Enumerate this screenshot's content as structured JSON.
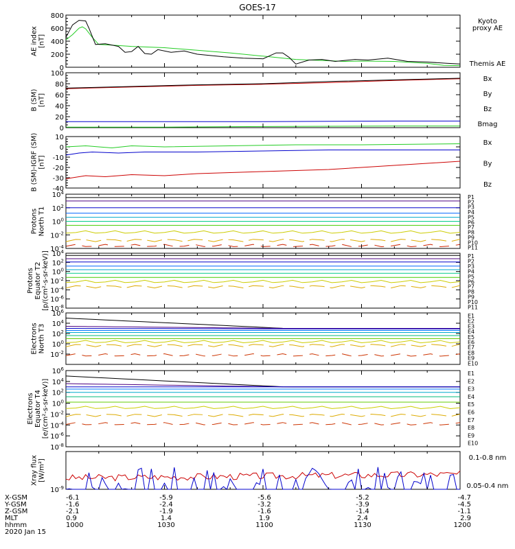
{
  "title": "GOES-17",
  "colors": {
    "black": "#000000",
    "green": "#22cc22",
    "blue": "#0000cc",
    "red": "#cc0000",
    "P": [
      "#000000",
      "#4b0080",
      "#0000cc",
      "#0066ff",
      "#00aacc",
      "#00cc88",
      "#44cc00",
      "#cccc00",
      "#ddaa00",
      "#cc2200",
      "#cc0000"
    ],
    "E": [
      "#000000",
      "#4b0080",
      "#0000cc",
      "#0077ff",
      "#00aacc",
      "#00bb77",
      "#66cc00",
      "#cccc00",
      "#ddaa00",
      "#cc3300",
      "#cc0000"
    ]
  },
  "xaxis": {
    "rows": [
      {
        "label": "X-GSM",
        "values": [
          "-6.1",
          "-5.9",
          "-5.6",
          "-5.2",
          "-4.7"
        ]
      },
      {
        "label": "Y-GSM",
        "values": [
          "-1.6",
          "-2.4",
          "-3.2",
          "-3.9",
          "-4.5"
        ]
      },
      {
        "label": "Z-GSM",
        "values": [
          "-2.1",
          "-1.9",
          "-1.6",
          "-1.4",
          "-1.1"
        ]
      },
      {
        "label": "MLT",
        "values": [
          "0.9",
          "1.4",
          "1.9",
          "2.4",
          "2.9"
        ]
      },
      {
        "label": "hhmm",
        "values": [
          "1000",
          "1030",
          "1100",
          "1130",
          "1200"
        ]
      }
    ],
    "date": "2020 Jan 15"
  },
  "chart_data": [
    {
      "type": "line",
      "ylabel": "AE index\n[nT]",
      "ylim": [
        0,
        800
      ],
      "yticks": [
        "0",
        "200",
        "400",
        "600",
        "800"
      ],
      "ytick_values": [
        0,
        200,
        400,
        600,
        800
      ],
      "series": [
        {
          "name": "Kyoto proxy AE",
          "color": "green",
          "values": [
            [
              0,
              420
            ],
            [
              2,
              500
            ],
            [
              4,
              600
            ],
            [
              5,
              620
            ],
            [
              6,
              590
            ],
            [
              8,
              460
            ],
            [
              10,
              350
            ],
            [
              14,
              340
            ],
            [
              20,
              320
            ],
            [
              30,
              300
            ],
            [
              40,
              260
            ],
            [
              50,
              220
            ],
            [
              60,
              170
            ],
            [
              70,
              120
            ],
            [
              80,
              100
            ],
            [
              85,
              90
            ],
            [
              90,
              95
            ],
            [
              100,
              90
            ],
            [
              110,
              60
            ],
            [
              115,
              30
            ],
            [
              120,
              25
            ]
          ]
        },
        {
          "name": "Themis AE",
          "color": "black",
          "values": [
            [
              0,
              460
            ],
            [
              2,
              650
            ],
            [
              4,
              720
            ],
            [
              6,
              710
            ],
            [
              7,
              600
            ],
            [
              9,
              350
            ],
            [
              12,
              360
            ],
            [
              16,
              320
            ],
            [
              18,
              230
            ],
            [
              20,
              240
            ],
            [
              22,
              320
            ],
            [
              24,
              210
            ],
            [
              26,
              200
            ],
            [
              28,
              270
            ],
            [
              32,
              230
            ],
            [
              36,
              250
            ],
            [
              40,
              200
            ],
            [
              48,
              160
            ],
            [
              54,
              140
            ],
            [
              60,
              130
            ],
            [
              64,
              220
            ],
            [
              66,
              220
            ],
            [
              68,
              150
            ],
            [
              70,
              50
            ],
            [
              74,
              110
            ],
            [
              78,
              120
            ],
            [
              82,
              90
            ],
            [
              88,
              120
            ],
            [
              92,
              110
            ],
            [
              98,
              140
            ],
            [
              104,
              90
            ],
            [
              110,
              80
            ],
            [
              116,
              60
            ],
            [
              120,
              50
            ]
          ]
        }
      ],
      "legend": [
        {
          "text": "Kyoto\nproxy AE",
          "color": "green"
        },
        {
          "text": "Themis AE",
          "color": "black"
        }
      ]
    },
    {
      "type": "line",
      "ylabel": "B (SM)\n[nT]",
      "ylim": [
        0,
        100
      ],
      "yticks": [
        "0",
        "20",
        "40",
        "60",
        "80",
        "100"
      ],
      "ytick_values": [
        0,
        20,
        40,
        60,
        80,
        100
      ],
      "series": [
        {
          "name": "Bx",
          "color": "blue",
          "values": [
            [
              0,
              11
            ],
            [
              20,
              11
            ],
            [
              60,
              11
            ],
            [
              100,
              12
            ],
            [
              120,
              12
            ]
          ]
        },
        {
          "name": "By",
          "color": "green",
          "values": [
            [
              0,
              1
            ],
            [
              30,
              1
            ],
            [
              60,
              2
            ],
            [
              100,
              3
            ],
            [
              120,
              3
            ]
          ]
        },
        {
          "name": "Bz",
          "color": "red",
          "values": [
            [
              0,
              71
            ],
            [
              20,
              74
            ],
            [
              40,
              77
            ],
            [
              60,
              79
            ],
            [
              80,
              82
            ],
            [
              100,
              86
            ],
            [
              120,
              89
            ]
          ]
        },
        {
          "name": "Bmag",
          "color": "black",
          "values": [
            [
              0,
              72
            ],
            [
              20,
              75
            ],
            [
              40,
              78
            ],
            [
              60,
              80
            ],
            [
              80,
              84
            ],
            [
              100,
              87
            ],
            [
              120,
              90
            ]
          ]
        }
      ],
      "legend": [
        {
          "text": "Bx",
          "color": "blue"
        },
        {
          "text": "By",
          "color": "green"
        },
        {
          "text": "Bz",
          "color": "red"
        },
        {
          "text": "Bmag",
          "color": "black"
        }
      ]
    },
    {
      "type": "line",
      "ylabel": "B (SM)-IGRF (SM)\n[nT]",
      "ylim": [
        -40,
        10
      ],
      "yticks": [
        "-40",
        "-30",
        "-20",
        "-10",
        "0",
        "10"
      ],
      "ytick_values": [
        -40,
        -30,
        -20,
        -10,
        0,
        10
      ],
      "series": [
        {
          "name": "Bx",
          "color": "blue",
          "values": [
            [
              0,
              -8
            ],
            [
              4,
              -6
            ],
            [
              8,
              -5
            ],
            [
              16,
              -6
            ],
            [
              24,
              -5
            ],
            [
              40,
              -5
            ],
            [
              60,
              -4
            ],
            [
              80,
              -3
            ],
            [
              100,
              -3
            ],
            [
              120,
              -3
            ]
          ]
        },
        {
          "name": "By",
          "color": "green",
          "values": [
            [
              0,
              0
            ],
            [
              6,
              1
            ],
            [
              10,
              0
            ],
            [
              14,
              -1
            ],
            [
              20,
              1
            ],
            [
              30,
              0
            ],
            [
              50,
              1
            ],
            [
              70,
              2
            ],
            [
              90,
              2
            ],
            [
              120,
              3
            ]
          ]
        },
        {
          "name": "Bz",
          "color": "red",
          "values": [
            [
              0,
              -31
            ],
            [
              6,
              -28
            ],
            [
              12,
              -29
            ],
            [
              20,
              -27
            ],
            [
              30,
              -28
            ],
            [
              40,
              -26
            ],
            [
              50,
              -25
            ],
            [
              60,
              -24
            ],
            [
              70,
              -23
            ],
            [
              80,
              -22
            ],
            [
              90,
              -20
            ],
            [
              100,
              -18
            ],
            [
              110,
              -16
            ],
            [
              120,
              -14
            ]
          ]
        }
      ],
      "legend": [
        {
          "text": "Bx",
          "color": "blue"
        },
        {
          "text": "By",
          "color": "green"
        },
        {
          "text": "Bz",
          "color": "red"
        }
      ]
    },
    {
      "type": "log-line",
      "ylabel": "Protons\nNorth T1",
      "ylim_exp": [
        -4,
        4
      ],
      "yticks": [
        "10^-4",
        "10^-2",
        "10^0",
        "10^2",
        "10^4"
      ],
      "ytick_exps": [
        -4,
        -2,
        0,
        2,
        4
      ],
      "series": [
        {
          "name": "P1",
          "levels": [
            3.5,
            3.5
          ]
        },
        {
          "name": "P2",
          "levels": [
            3.0,
            3.0
          ]
        },
        {
          "name": "P3",
          "levels": [
            2.0,
            2.0
          ]
        },
        {
          "name": "P4",
          "levels": [
            1.2,
            1.2
          ]
        },
        {
          "name": "P5",
          "levels": [
            0.6,
            0.6
          ]
        },
        {
          "name": "P6",
          "levels": [
            0.0,
            0.0
          ]
        },
        {
          "name": "P7",
          "levels": [
            -0.6,
            -0.6
          ]
        },
        {
          "name": "P8",
          "levels": [
            -1.6,
            -1.6
          ]
        },
        {
          "name": "P9",
          "levels": [
            -2.8,
            -2.8
          ]
        },
        {
          "name": "P10",
          "levels": [
            -3.6,
            -3.6
          ]
        },
        {
          "name": "P11",
          "levels": [
            -4.2,
            -4.2
          ]
        }
      ],
      "legend_prefix": "P"
    },
    {
      "type": "log-line",
      "ylabel": "Protons\nEquator T2\n[p/(cm²-s-sr-keV)]",
      "ylim_exp": [
        -8,
        4
      ],
      "yticks": [
        "10^-8",
        "10^-6",
        "10^-4",
        "10^-2",
        "10^0",
        "10^2",
        "10^4"
      ],
      "ytick_exps": [
        -8,
        -6,
        -4,
        -2,
        0,
        2,
        4
      ],
      "series": [
        {
          "name": "P1",
          "levels": [
            3.5,
            3.5
          ]
        },
        {
          "name": "P2",
          "levels": [
            2.8,
            2.8
          ]
        },
        {
          "name": "P3",
          "levels": [
            2.1,
            2.1
          ]
        },
        {
          "name": "P4",
          "levels": [
            1.2,
            1.2
          ]
        },
        {
          "name": "P5",
          "levels": [
            0.4,
            0.4
          ]
        },
        {
          "name": "P6",
          "levels": [
            -0.4,
            -0.4
          ]
        },
        {
          "name": "P7",
          "levels": [
            -1.3,
            -1.3
          ]
        },
        {
          "name": "P8",
          "levels": [
            -2.2,
            -2.2
          ]
        },
        {
          "name": "P9",
          "levels": [
            -3.3,
            -3.3
          ]
        },
        {
          "name": "P10",
          "levels": [
            -8,
            -8
          ]
        },
        {
          "name": "P11",
          "levels": [
            -8,
            -8
          ]
        }
      ],
      "legend_prefix": "P"
    },
    {
      "type": "log-line",
      "ylabel": "Electrons\nNorth T3",
      "ylim_exp": [
        -4,
        6
      ],
      "yticks": [
        "10^-2",
        "10^0",
        "10^2",
        "10^4",
        "10^6"
      ],
      "ytick_exps": [
        -2,
        0,
        2,
        4,
        6
      ],
      "series": [
        {
          "name": "E1",
          "levels": [
            5.0,
            3.0
          ]
        },
        {
          "name": "E2",
          "levels": [
            3.4,
            3.0
          ]
        },
        {
          "name": "E3",
          "levels": [
            3.0,
            2.9
          ]
        },
        {
          "name": "E4",
          "levels": [
            2.6,
            2.6
          ]
        },
        {
          "name": "E5",
          "levels": [
            2.2,
            2.2
          ]
        },
        {
          "name": "E6",
          "levels": [
            1.6,
            1.6
          ]
        },
        {
          "name": "E7",
          "levels": [
            1.0,
            1.0
          ]
        },
        {
          "name": "E8",
          "levels": [
            0.4,
            0.4
          ]
        },
        {
          "name": "E9",
          "levels": [
            -0.3,
            -0.3
          ]
        },
        {
          "name": "E10",
          "levels": [
            -2.2,
            -2.2
          ]
        }
      ],
      "legend_prefix": "E"
    },
    {
      "type": "log-line",
      "ylabel": "Electrons\nEquator T4\n[e/(cm²-s-sr-keV)]",
      "ylim_exp": [
        -8,
        6
      ],
      "yticks": [
        "10^-8",
        "10^-6",
        "10^-4",
        "10^-2",
        "10^0",
        "10^2",
        "10^4",
        "10^6"
      ],
      "ytick_exps": [
        -8,
        -6,
        -4,
        -2,
        0,
        2,
        4,
        6
      ],
      "series": [
        {
          "name": "E1",
          "levels": [
            5.0,
            3.0
          ]
        },
        {
          "name": "E2",
          "levels": [
            3.6,
            3.0
          ]
        },
        {
          "name": "E3",
          "levels": [
            3.0,
            3.0
          ]
        },
        {
          "name": "E4",
          "levels": [
            2.6,
            2.6
          ]
        },
        {
          "name": "E5",
          "levels": [
            2.0,
            2.0
          ]
        },
        {
          "name": "E6",
          "levels": [
            1.2,
            1.2
          ]
        },
        {
          "name": "E7",
          "levels": [
            0.2,
            0.2
          ]
        },
        {
          "name": "E8",
          "levels": [
            -0.8,
            -0.8
          ]
        },
        {
          "name": "E9",
          "levels": [
            -2.2,
            -2.2
          ]
        },
        {
          "name": "E10",
          "levels": [
            -3.8,
            -3.8
          ]
        }
      ],
      "legend_prefix": "E"
    },
    {
      "type": "log-line",
      "ylabel": "Xray flux\n[W/m²]",
      "ylim_exp": [
        -9,
        -6
      ],
      "yticks": [
        "10^-9"
      ],
      "ytick_exps": [
        -9
      ],
      "series": [
        {
          "name": "0.1-0.8 nm",
          "color": "red",
          "mean_exp": -8.0
        },
        {
          "name": "0.05-0.4 nm",
          "color": "blue",
          "mean_exp": -9.0
        }
      ],
      "legend": [
        {
          "text": "0.1-0.8 nm",
          "color": "red"
        },
        {
          "text": "0.05-0.4 nm",
          "color": "blue"
        }
      ]
    }
  ]
}
